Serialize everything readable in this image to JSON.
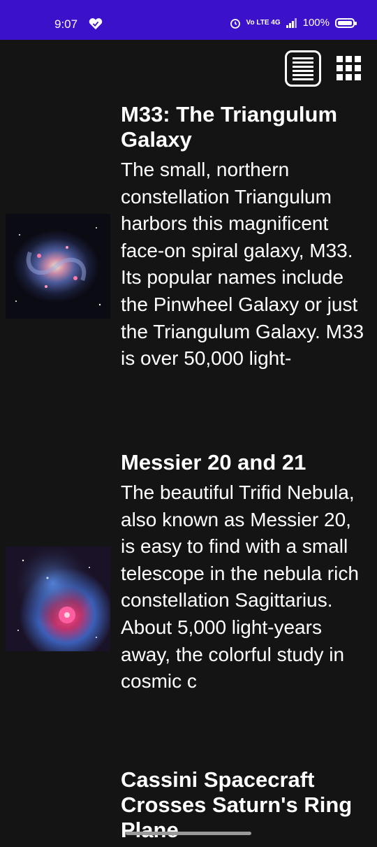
{
  "status_bar": {
    "time": "9:07",
    "network_label": "Vo LTE 4G",
    "battery": "100%"
  },
  "toolbar": {
    "list_view_icon": "list-icon",
    "grid_view_icon": "grid-icon"
  },
  "articles": [
    {
      "title": "M33: The Triangulum Galaxy",
      "description": "The small, northern constellation Triangulum harbors this magnificent face-on spiral galaxy, M33. Its popular names include the Pinwheel Galaxy or just the Triangulum Galaxy. M33 is over 50,000 light-"
    },
    {
      "title": "Messier 20 and 21",
      "description": "The beautiful Trifid Nebula, also known as Messier 20, is easy to find with a small telescope in the nebula rich constellation Sagittarius. About 5,000 light-years away, the colorful study in cosmic c"
    },
    {
      "title": "Cassini Spacecraft Crosses Saturn's Ring Plane",
      "description": ""
    }
  ],
  "colors": {
    "status_bar": "#3b11c9",
    "background": "#141414",
    "text": "#ffffff"
  }
}
